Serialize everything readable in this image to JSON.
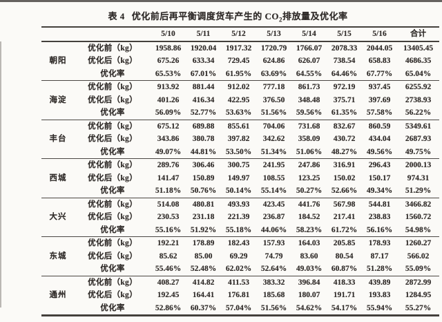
{
  "page": {
    "background": "#fbfaf7",
    "rule_color": "#44403c",
    "text_color": "#2e2a28"
  },
  "title": {
    "label": "表 4",
    "main": "优化前后再平衡调度货车产生的 CO",
    "subscript": "2",
    "suffix": "排放量及优化率"
  },
  "table": {
    "date_headers": [
      "5/10",
      "5/11",
      "5/12",
      "5/13",
      "5/14",
      "5/15",
      "5/16",
      "合计"
    ],
    "metric_labels": {
      "before": "优化前（kg）",
      "after": "优化后（kg）",
      "rate": "优化率"
    },
    "groups": [
      {
        "district": "朝阳",
        "before": [
          "1958.86",
          "1920.04",
          "1917.32",
          "1720.79",
          "1766.07",
          "2078.33",
          "2044.05",
          "13405.45"
        ],
        "after": [
          "675.26",
          "633.34",
          "729.45",
          "624.86",
          "626.07",
          "738.54",
          "658.83",
          "4686.35"
        ],
        "rate": [
          "65.53%",
          "67.01%",
          "61.95%",
          "63.69%",
          "64.55%",
          "64.46%",
          "67.77%",
          "65.04%"
        ]
      },
      {
        "district": "海淀",
        "before": [
          "913.92",
          "881.44",
          "912.02",
          "777.18",
          "861.73",
          "972.19",
          "937.45",
          "6255.92"
        ],
        "after": [
          "401.26",
          "416.34",
          "422.95",
          "376.50",
          "348.48",
          "375.71",
          "397.69",
          "2738.93"
        ],
        "rate": [
          "56.09%",
          "52.77%",
          "53.63%",
          "51.56%",
          "59.56%",
          "61.35%",
          "57.58%",
          "56.22%"
        ]
      },
      {
        "district": "丰台",
        "before": [
          "675.12",
          "689.88",
          "855.61",
          "704.06",
          "731.68",
          "832.67",
          "860.59",
          "5349.61"
        ],
        "after": [
          "343.86",
          "380.78",
          "397.82",
          "342.62",
          "358.09",
          "430.72",
          "434.04",
          "2687.93"
        ],
        "rate": [
          "49.07%",
          "44.81%",
          "53.50%",
          "51.34%",
          "51.06%",
          "48.27%",
          "49.56%",
          "49.75%"
        ]
      },
      {
        "district": "西城",
        "before": [
          "289.76",
          "306.46",
          "300.75",
          "241.95",
          "247.86",
          "316.91",
          "296.43",
          "2000.13"
        ],
        "after": [
          "141.47",
          "150.89",
          "149.97",
          "108.55",
          "123.25",
          "150.02",
          "150.17",
          "974.31"
        ],
        "rate": [
          "51.18%",
          "50.76%",
          "50.14%",
          "55.14%",
          "50.27%",
          "52.66%",
          "49.34%",
          "51.29%"
        ]
      },
      {
        "district": "大兴",
        "before": [
          "514.08",
          "480.81",
          "493.93",
          "423.45",
          "441.76",
          "567.98",
          "544.81",
          "3466.82"
        ],
        "after": [
          "230.53",
          "231.18",
          "221.39",
          "236.87",
          "184.52",
          "217.41",
          "238.83",
          "1560.72"
        ],
        "rate": [
          "55.16%",
          "51.92%",
          "55.18%",
          "44.06%",
          "58.23%",
          "61.72%",
          "56.16%",
          "54.98%"
        ]
      },
      {
        "district": "东城",
        "before": [
          "192.21",
          "178.89",
          "182.43",
          "157.93",
          "164.03",
          "205.85",
          "178.93",
          "1260.27"
        ],
        "after": [
          "85.62",
          "85.00",
          "69.29",
          "74.79",
          "83.60",
          "80.54",
          "87.17",
          "566.02"
        ],
        "rate": [
          "55.46%",
          "52.48%",
          "62.02%",
          "52.64%",
          "49.03%",
          "60.87%",
          "51.28%",
          "55.09%"
        ]
      },
      {
        "district": "通州",
        "before": [
          "408.27",
          "414.82",
          "411.53",
          "383.32",
          "396.84",
          "418.33",
          "439.89",
          "2872.99"
        ],
        "after": [
          "192.45",
          "164.41",
          "176.81",
          "185.68",
          "180.07",
          "191.71",
          "193.83",
          "1284.95"
        ],
        "rate": [
          "52.86%",
          "60.37%",
          "57.04%",
          "51.56%",
          "54.62%",
          "54.17%",
          "55.94%",
          "55.27%"
        ]
      }
    ]
  }
}
